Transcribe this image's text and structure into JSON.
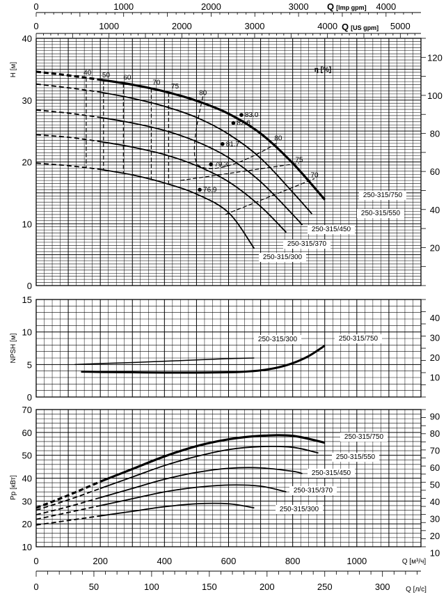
{
  "chart_data": [
    {
      "type": "line",
      "panel": "head",
      "ylabel": "H [м]",
      "ylabel_right": "η [%]",
      "x_units": "Q [м³/ч]",
      "xlim": [
        0,
        1200
      ],
      "ylim": [
        0,
        40
      ],
      "ylim_right": [
        0,
        130
      ],
      "y_ticks": [
        "0",
        "10",
        "20",
        "30",
        "40"
      ],
      "y_right_ticks": [
        "20",
        "40",
        "60",
        "80",
        "100",
        "120"
      ],
      "grid": true,
      "series": [
        {
          "name": "250-315/750",
          "x": [
            0,
            100,
            200,
            300,
            400,
            500,
            600,
            700,
            800,
            900
          ],
          "y": [
            34.6,
            34.0,
            33.3,
            32.5,
            31.4,
            29.9,
            27.8,
            24.6,
            19.8,
            13.9
          ]
        },
        {
          "name": "250-315/550",
          "x": [
            0,
            100,
            200,
            300,
            400,
            500,
            600,
            700,
            800,
            860
          ],
          "y": [
            32.6,
            32.0,
            31.3,
            30.3,
            29.0,
            27.2,
            24.5,
            20.6,
            15.1,
            11.6
          ]
        },
        {
          "name": "250-315/450",
          "x": [
            0,
            100,
            200,
            300,
            400,
            500,
            600,
            700,
            800,
            830
          ],
          "y": [
            28.4,
            27.9,
            27.2,
            26.3,
            25.1,
            23.3,
            20.7,
            16.8,
            11.5,
            9.8
          ]
        },
        {
          "name": "250-315/370",
          "x": [
            0,
            100,
            200,
            300,
            400,
            500,
            600,
            700,
            780
          ],
          "y": [
            24.4,
            24.0,
            23.3,
            22.4,
            21.2,
            19.4,
            16.8,
            12.8,
            8.6
          ]
        },
        {
          "name": "250-315/300",
          "x": [
            0,
            100,
            200,
            300,
            400,
            500,
            600,
            680
          ],
          "y": [
            19.8,
            19.4,
            18.8,
            17.9,
            16.6,
            14.8,
            11.8,
            6.0
          ]
        }
      ],
      "efficiency_labels": [
        "40",
        "50",
        "60",
        "70",
        "75",
        "80",
        "80",
        "75",
        "70"
      ],
      "efficiency_label_points": [
        {
          "label": "40",
          "x": 160,
          "y": 34.0
        },
        {
          "label": "50",
          "x": 218,
          "y": 33.6
        },
        {
          "label": "60",
          "x": 284,
          "y": 33.2
        },
        {
          "label": "70",
          "x": 375,
          "y": 32.4
        },
        {
          "label": "75",
          "x": 433,
          "y": 31.8
        },
        {
          "label": "80",
          "x": 520,
          "y": 30.7
        },
        {
          "label": "80",
          "x": 755,
          "y": 23.4
        },
        {
          "label": "75",
          "x": 820,
          "y": 19.9
        },
        {
          "label": "70",
          "x": 868,
          "y": 17.4
        }
      ],
      "bep_points": [
        {
          "label": "83.0",
          "x": 640,
          "y": 27.6
        },
        {
          "label": "82.6",
          "x": 615,
          "y": 26.3
        },
        {
          "label": "81.7",
          "x": 581,
          "y": 22.9
        },
        {
          "label": "79.3",
          "x": 545,
          "y": 19.6
        },
        {
          "label": "76.9",
          "x": 510,
          "y": 15.5
        }
      ],
      "curve_labels": [
        "250-315/750",
        "250-315/550",
        "250-315/450",
        "250-315/370",
        "250-315/300"
      ]
    },
    {
      "type": "line",
      "panel": "npsh",
      "ylabel": "NPSH [м]",
      "xlim": [
        0,
        1200
      ],
      "ylim": [
        0,
        15
      ],
      "y_ticks": [
        "0",
        "5",
        "10",
        "15"
      ],
      "y_right_ticks": [
        "10",
        "20",
        "30",
        "40"
      ],
      "grid": true,
      "series": [
        {
          "name": "250-315/750",
          "x": [
            140,
            200,
            300,
            400,
            500,
            600,
            650,
            700,
            750,
            800,
            850,
            900
          ],
          "y": [
            3.9,
            3.85,
            3.8,
            3.75,
            3.75,
            3.8,
            3.9,
            4.1,
            4.5,
            5.2,
            6.3,
            7.9
          ]
        },
        {
          "name": "250-315/300",
          "x": [
            120,
            200,
            300,
            400,
            500,
            600,
            680
          ],
          "y": [
            5.0,
            5.15,
            5.3,
            5.5,
            5.7,
            5.9,
            6.0
          ]
        }
      ],
      "curve_labels": [
        "250-315/300",
        "250-315/750"
      ]
    },
    {
      "type": "line",
      "panel": "power",
      "ylabel": "Pp [кВт]",
      "xlabel": "Q [м³/ч]",
      "xlabel_secondary": "Q [л/с]",
      "xlim": [
        0,
        1200
      ],
      "ylim": [
        10,
        70
      ],
      "y_ticks": [
        "10",
        "20",
        "30",
        "40",
        "50",
        "60",
        "70"
      ],
      "y_right_ticks": [
        "10",
        "20",
        "30",
        "40",
        "50",
        "60",
        "70",
        "80",
        "90"
      ],
      "grid": true,
      "series": [
        {
          "name": "250-315/750",
          "x": [
            0,
            100,
            200,
            300,
            400,
            500,
            600,
            700,
            800,
            900
          ],
          "y": [
            27.0,
            32.5,
            38.5,
            44.0,
            49.5,
            54.0,
            57.0,
            58.5,
            58.5,
            55.5
          ]
        },
        {
          "name": "250-315/550",
          "x": [
            0,
            100,
            200,
            300,
            400,
            500,
            600,
            700,
            800,
            880
          ],
          "y": [
            26.0,
            30.5,
            35.5,
            40.5,
            45.5,
            49.5,
            52.5,
            53.8,
            53.5,
            51.0
          ]
        },
        {
          "name": "250-315/450",
          "x": [
            0,
            100,
            200,
            300,
            400,
            500,
            600,
            700,
            800,
            830
          ],
          "y": [
            24.0,
            27.5,
            31.5,
            35.5,
            39.5,
            42.5,
            44.3,
            44.5,
            43.0,
            42.0
          ]
        },
        {
          "name": "250-315/370",
          "x": [
            0,
            100,
            200,
            300,
            400,
            500,
            600,
            700,
            780
          ],
          "y": [
            22.0,
            25.0,
            28.0,
            31.0,
            34.0,
            36.0,
            37.0,
            36.5,
            34.0
          ]
        },
        {
          "name": "250-315/300",
          "x": [
            0,
            100,
            200,
            300,
            400,
            500,
            600,
            680
          ],
          "y": [
            19.5,
            21.5,
            23.5,
            25.5,
            27.5,
            28.8,
            28.8,
            27.0
          ]
        }
      ],
      "curve_labels": [
        "250-315/750",
        "250-315/550",
        "250-315/450",
        "250-315/370",
        "250-315/300"
      ]
    }
  ],
  "axes": {
    "top1_title": "Q [Imp gpm]",
    "top1_ticks": [
      "0",
      "1000",
      "2000",
      "3000",
      "4000"
    ],
    "top2_title": "Q [US gpm]",
    "top2_ticks": [
      "0",
      "1000",
      "2000",
      "3000",
      "4000",
      "5000"
    ],
    "bottom1_title": "Q [м³/ч]",
    "bottom1_ticks": [
      "0",
      "200",
      "400",
      "600",
      "800",
      "1000"
    ],
    "bottom2_title": "Q [л/с]",
    "bottom2_ticks": [
      "0",
      "50",
      "100",
      "150",
      "200",
      "250",
      "300"
    ]
  }
}
